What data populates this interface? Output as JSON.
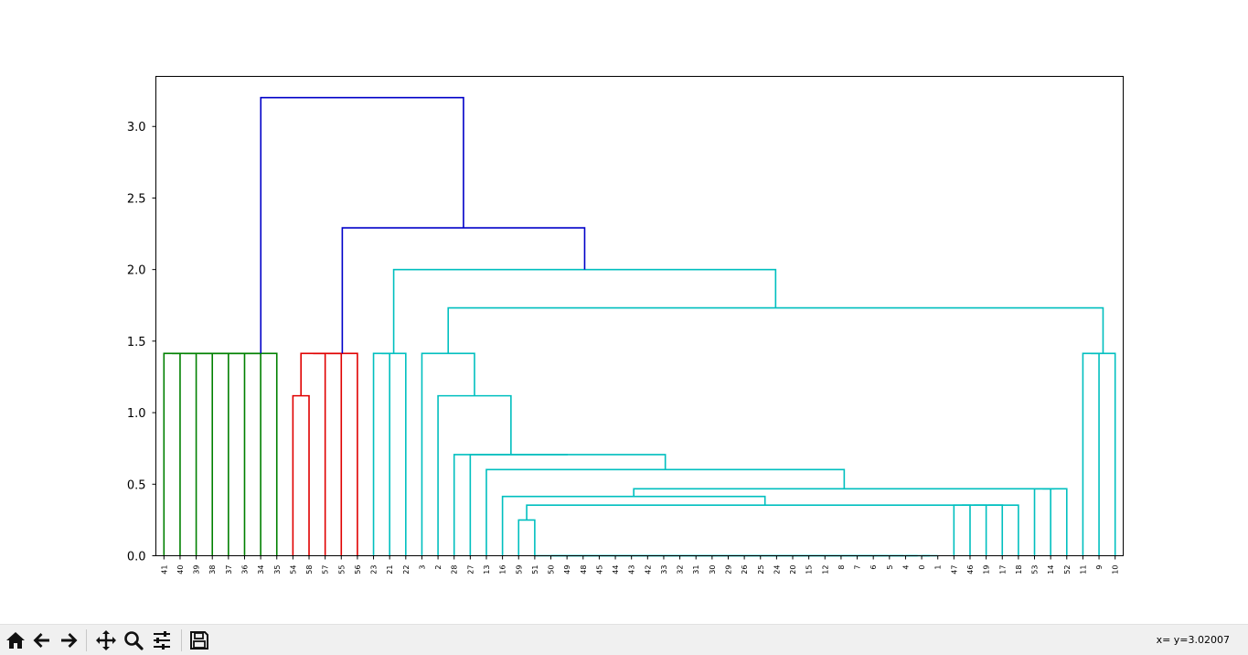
{
  "chart_data": {
    "type": "dendrogram",
    "title": "",
    "xlabel": "",
    "ylabel": "",
    "ylim": [
      0,
      3.35
    ],
    "yticks": [
      0.0,
      0.5,
      1.0,
      1.5,
      2.0,
      2.5,
      3.0
    ],
    "ytick_labels": [
      "0.0",
      "0.5",
      "1.0",
      "1.5",
      "2.0",
      "2.5",
      "3.0"
    ],
    "leaves": [
      "41",
      "40",
      "39",
      "38",
      "37",
      "36",
      "34",
      "35",
      "54",
      "58",
      "57",
      "55",
      "56",
      "23",
      "21",
      "22",
      "3",
      "2",
      "28",
      "27",
      "13",
      "16",
      "59",
      "51",
      "50",
      "49",
      "48",
      "45",
      "44",
      "43",
      "42",
      "33",
      "32",
      "31",
      "30",
      "29",
      "26",
      "25",
      "24",
      "20",
      "15",
      "12",
      "8",
      "7",
      "6",
      "5",
      "4",
      "0",
      "1",
      "47",
      "46",
      "19",
      "17",
      "18",
      "53",
      "14",
      "52",
      "11",
      "9",
      "10"
    ],
    "colors": {
      "green": "#008000",
      "red": "#e00000",
      "cyan": "#00bfbf",
      "blue": "#0000c8"
    },
    "links": [
      {
        "left": "L0",
        "right": "L1",
        "height": 1.4142,
        "color": "green",
        "id": "g1"
      },
      {
        "left": "g1",
        "right": "L2",
        "height": 1.4142,
        "color": "green",
        "id": "g2"
      },
      {
        "left": "g2",
        "right": "L3",
        "height": 1.4142,
        "color": "green",
        "id": "g3"
      },
      {
        "left": "g3",
        "right": "L4",
        "height": 1.4142,
        "color": "green",
        "id": "g4"
      },
      {
        "left": "g4",
        "right": "L5",
        "height": 1.4142,
        "color": "green",
        "id": "g5"
      },
      {
        "left": "g5",
        "right": "L6",
        "height": 1.4142,
        "color": "green",
        "id": "g6"
      },
      {
        "left": "g6",
        "right": "L7",
        "height": 1.4142,
        "color": "green",
        "id": "g7"
      },
      {
        "left": "L8",
        "right": "L9",
        "height": 1.118,
        "color": "red",
        "id": "r1"
      },
      {
        "left": "r1",
        "right": "L10",
        "height": 1.4142,
        "color": "red",
        "id": "r2"
      },
      {
        "left": "r2",
        "right": "L11",
        "height": 1.4142,
        "color": "red",
        "id": "r3"
      },
      {
        "left": "r3",
        "right": "L12",
        "height": 1.4142,
        "color": "red",
        "id": "r4"
      },
      {
        "left": "L13",
        "right": "L14",
        "height": 1.4142,
        "color": "cyan",
        "id": "c1"
      },
      {
        "left": "c1",
        "right": "L15",
        "height": 1.4142,
        "color": "cyan",
        "id": "c2"
      },
      {
        "left": "L47",
        "right": "L48",
        "height": 0.0,
        "color": "cyan",
        "id": "z1"
      },
      {
        "left": "L46",
        "right": "z1",
        "height": 0.0,
        "color": "cyan",
        "id": "z2"
      },
      {
        "left": "L45",
        "right": "z2",
        "height": 0.0,
        "color": "cyan",
        "id": "z3"
      },
      {
        "left": "L44",
        "right": "z3",
        "height": 0.0,
        "color": "cyan",
        "id": "z4"
      },
      {
        "left": "L43",
        "right": "z4",
        "height": 0.0,
        "color": "cyan",
        "id": "z5"
      },
      {
        "left": "L42",
        "right": "z5",
        "height": 0.0,
        "color": "cyan",
        "id": "z6"
      },
      {
        "left": "L41",
        "right": "z6",
        "height": 0.0,
        "color": "cyan",
        "id": "z7"
      },
      {
        "left": "L40",
        "right": "z7",
        "height": 0.0,
        "color": "cyan",
        "id": "z8"
      },
      {
        "left": "L39",
        "right": "z8",
        "height": 0.0,
        "color": "cyan",
        "id": "z9"
      },
      {
        "left": "L38",
        "right": "z9",
        "height": 0.0,
        "color": "cyan",
        "id": "z10"
      },
      {
        "left": "L37",
        "right": "z10",
        "height": 0.0,
        "color": "cyan",
        "id": "z11"
      },
      {
        "left": "L36",
        "right": "z11",
        "height": 0.0,
        "color": "cyan",
        "id": "z12"
      },
      {
        "left": "L35",
        "right": "z12",
        "height": 0.0,
        "color": "cyan",
        "id": "z13"
      },
      {
        "left": "L34",
        "right": "z13",
        "height": 0.0,
        "color": "cyan",
        "id": "z14"
      },
      {
        "left": "L33",
        "right": "z14",
        "height": 0.0,
        "color": "cyan",
        "id": "z15"
      },
      {
        "left": "L32",
        "right": "z15",
        "height": 0.0,
        "color": "cyan",
        "id": "z16"
      },
      {
        "left": "L31",
        "right": "z16",
        "height": 0.0,
        "color": "cyan",
        "id": "z17"
      },
      {
        "left": "L30",
        "right": "z17",
        "height": 0.0,
        "color": "cyan",
        "id": "z18"
      },
      {
        "left": "L29",
        "right": "z18",
        "height": 0.0,
        "color": "cyan",
        "id": "z19"
      },
      {
        "left": "L28",
        "right": "z19",
        "height": 0.0,
        "color": "cyan",
        "id": "z20"
      },
      {
        "left": "L27",
        "right": "z20",
        "height": 0.0,
        "color": "cyan",
        "id": "z21"
      },
      {
        "left": "L26",
        "right": "z21",
        "height": 0.0,
        "color": "cyan",
        "id": "z22"
      },
      {
        "left": "L25",
        "right": "z22",
        "height": 0.0,
        "color": "cyan",
        "id": "z23"
      },
      {
        "left": "L24",
        "right": "z23",
        "height": 0.0,
        "color": "cyan",
        "id": "z24"
      },
      {
        "left": "L23",
        "right": "z24",
        "height": 0.0,
        "color": "cyan",
        "id": "z25"
      },
      {
        "left": "L22",
        "right": "L23",
        "height": 0.25,
        "color": "cyan",
        "id": "c3"
      },
      {
        "left": "L49",
        "right": "L50",
        "height": 0.3536,
        "color": "cyan",
        "id": "q1"
      },
      {
        "left": "q1",
        "right": "L51",
        "height": 0.3536,
        "color": "cyan",
        "id": "q2"
      },
      {
        "left": "q2",
        "right": "L52",
        "height": 0.3536,
        "color": "cyan",
        "id": "q3"
      },
      {
        "left": "q3",
        "right": "L53",
        "height": 0.3536,
        "color": "cyan",
        "id": "q4"
      },
      {
        "left": "c3",
        "right": "q4",
        "height": 0.3536,
        "color": "cyan",
        "id": "c4"
      },
      {
        "left": "L21",
        "right": "c4",
        "height": 0.4146,
        "color": "cyan",
        "id": "c5"
      },
      {
        "left": "L54",
        "right": "L55",
        "height": 0.4677,
        "color": "cyan",
        "id": "t1"
      },
      {
        "left": "t1",
        "right": "L56",
        "height": 0.4677,
        "color": "cyan",
        "id": "t2"
      },
      {
        "left": "c5",
        "right": "t2",
        "height": 0.4677,
        "color": "cyan",
        "id": "c6"
      },
      {
        "left": "L20",
        "right": "c6",
        "height": 0.6021,
        "color": "cyan",
        "id": "c7"
      },
      {
        "left": "L19",
        "right": "c7",
        "height": 0.7071,
        "color": "cyan",
        "id": "c8"
      },
      {
        "left": "L18",
        "right": "c8",
        "height": 0.7071,
        "color": "cyan",
        "id": "c9"
      },
      {
        "left": "L17",
        "right": "c9",
        "height": 1.118,
        "color": "cyan",
        "id": "c10"
      },
      {
        "left": "L16",
        "right": "c10",
        "height": 1.4142,
        "color": "cyan",
        "id": "c11"
      },
      {
        "left": "L57",
        "right": "L58",
        "height": 1.4142,
        "color": "cyan",
        "id": "e1"
      },
      {
        "left": "e1",
        "right": "L59",
        "height": 1.4142,
        "color": "cyan",
        "id": "e2"
      },
      {
        "left": "c11",
        "right": "e2",
        "height": 1.7321,
        "color": "cyan",
        "id": "c12"
      },
      {
        "left": "c2",
        "right": "c12",
        "height": 2.0,
        "color": "cyan",
        "id": "c13"
      },
      {
        "left": "r4",
        "right": "c13",
        "height": 2.2913,
        "color": "blue",
        "id": "b1"
      },
      {
        "left": "g7",
        "right": "b1",
        "height": 3.2016,
        "color": "blue",
        "id": "b2"
      }
    ]
  },
  "status": {
    "coords": "x= y=3.02007"
  },
  "toolbar": {
    "buttons": [
      {
        "name": "home-button",
        "icon": "home-icon"
      },
      {
        "name": "back-button",
        "icon": "arrow-left-icon"
      },
      {
        "name": "forward-button",
        "icon": "arrow-right-icon"
      },
      {
        "name": "pan-button",
        "icon": "move-icon"
      },
      {
        "name": "zoom-button",
        "icon": "magnifier-icon"
      },
      {
        "name": "configure-subplots-button",
        "icon": "sliders-icon"
      },
      {
        "name": "save-button",
        "icon": "floppy-disk-icon"
      }
    ]
  }
}
